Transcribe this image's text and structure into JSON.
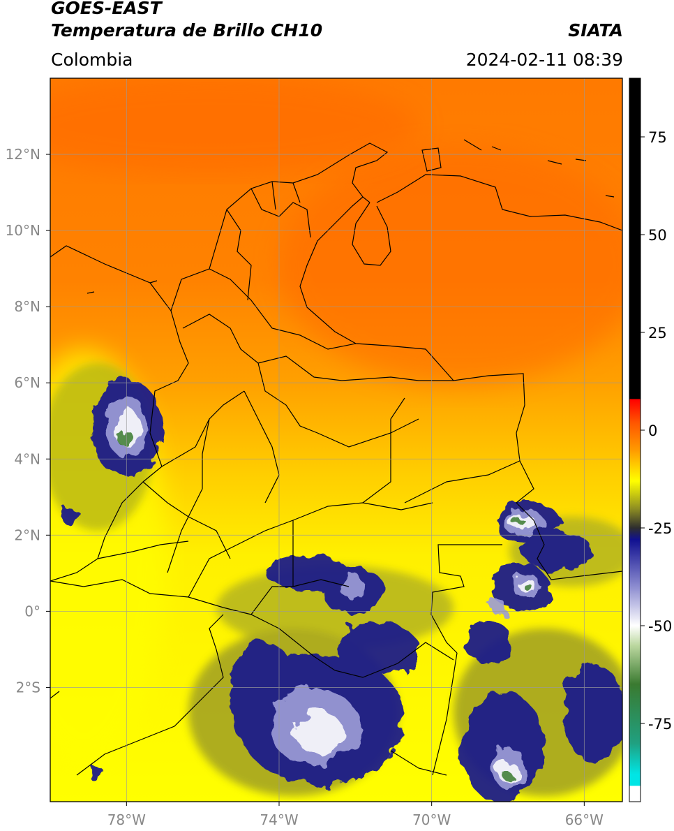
{
  "header": {
    "satellite": "GOES-EAST",
    "product": "Temperatura de Brillo CH10",
    "brand": "SIATA",
    "region": "Colombia",
    "datetime": "2024-02-11 08:39"
  },
  "map": {
    "lon_range": [
      -80,
      -65
    ],
    "lat_range": [
      -5,
      14
    ],
    "lon_ticks": [
      {
        "v": -78,
        "label": "78°W"
      },
      {
        "v": -74,
        "label": "74°W"
      },
      {
        "v": -70,
        "label": "70°W"
      },
      {
        "v": -66,
        "label": "66°W"
      }
    ],
    "lat_ticks": [
      {
        "v": 12,
        "label": "12°N"
      },
      {
        "v": 10,
        "label": "10°N"
      },
      {
        "v": 8,
        "label": "8°N"
      },
      {
        "v": 6,
        "label": "6°N"
      },
      {
        "v": 4,
        "label": "4°N"
      },
      {
        "v": 2,
        "label": "2°N"
      },
      {
        "v": 0,
        "label": "0°"
      },
      {
        "v": -2,
        "label": "2°S"
      }
    ]
  },
  "colorbar": {
    "range": [
      -95,
      90
    ],
    "ticks": [
      {
        "v": 75,
        "label": "75"
      },
      {
        "v": 50,
        "label": "50"
      },
      {
        "v": 25,
        "label": "25"
      },
      {
        "v": 0,
        "label": "0"
      },
      {
        "v": -25,
        "label": "-25"
      },
      {
        "v": -50,
        "label": "-50"
      },
      {
        "v": -75,
        "label": "-75"
      }
    ],
    "stops": [
      {
        "v": 90,
        "color": "#000000"
      },
      {
        "v": 8,
        "color": "#000000"
      },
      {
        "v": 7.9,
        "color": "#ff0000"
      },
      {
        "v": 2,
        "color": "#ff5500"
      },
      {
        "v": -5,
        "color": "#ff9900"
      },
      {
        "v": -13,
        "color": "#ffff00"
      },
      {
        "v": -20,
        "color": "#8f8f22"
      },
      {
        "v": -25,
        "color": "#2e2e2e"
      },
      {
        "v": -28,
        "color": "#101090"
      },
      {
        "v": -40,
        "color": "#8c8cd0"
      },
      {
        "v": -50,
        "color": "#ffffff"
      },
      {
        "v": -55,
        "color": "#bcd8a0"
      },
      {
        "v": -65,
        "color": "#3a7a30"
      },
      {
        "v": -80,
        "color": "#20a080"
      },
      {
        "v": -88,
        "color": "#00e5e5"
      },
      {
        "v": -90.9,
        "color": "#00e5e5"
      },
      {
        "v": -91,
        "color": "#ffffff"
      },
      {
        "v": -95,
        "color": "#ffffff"
      }
    ]
  }
}
